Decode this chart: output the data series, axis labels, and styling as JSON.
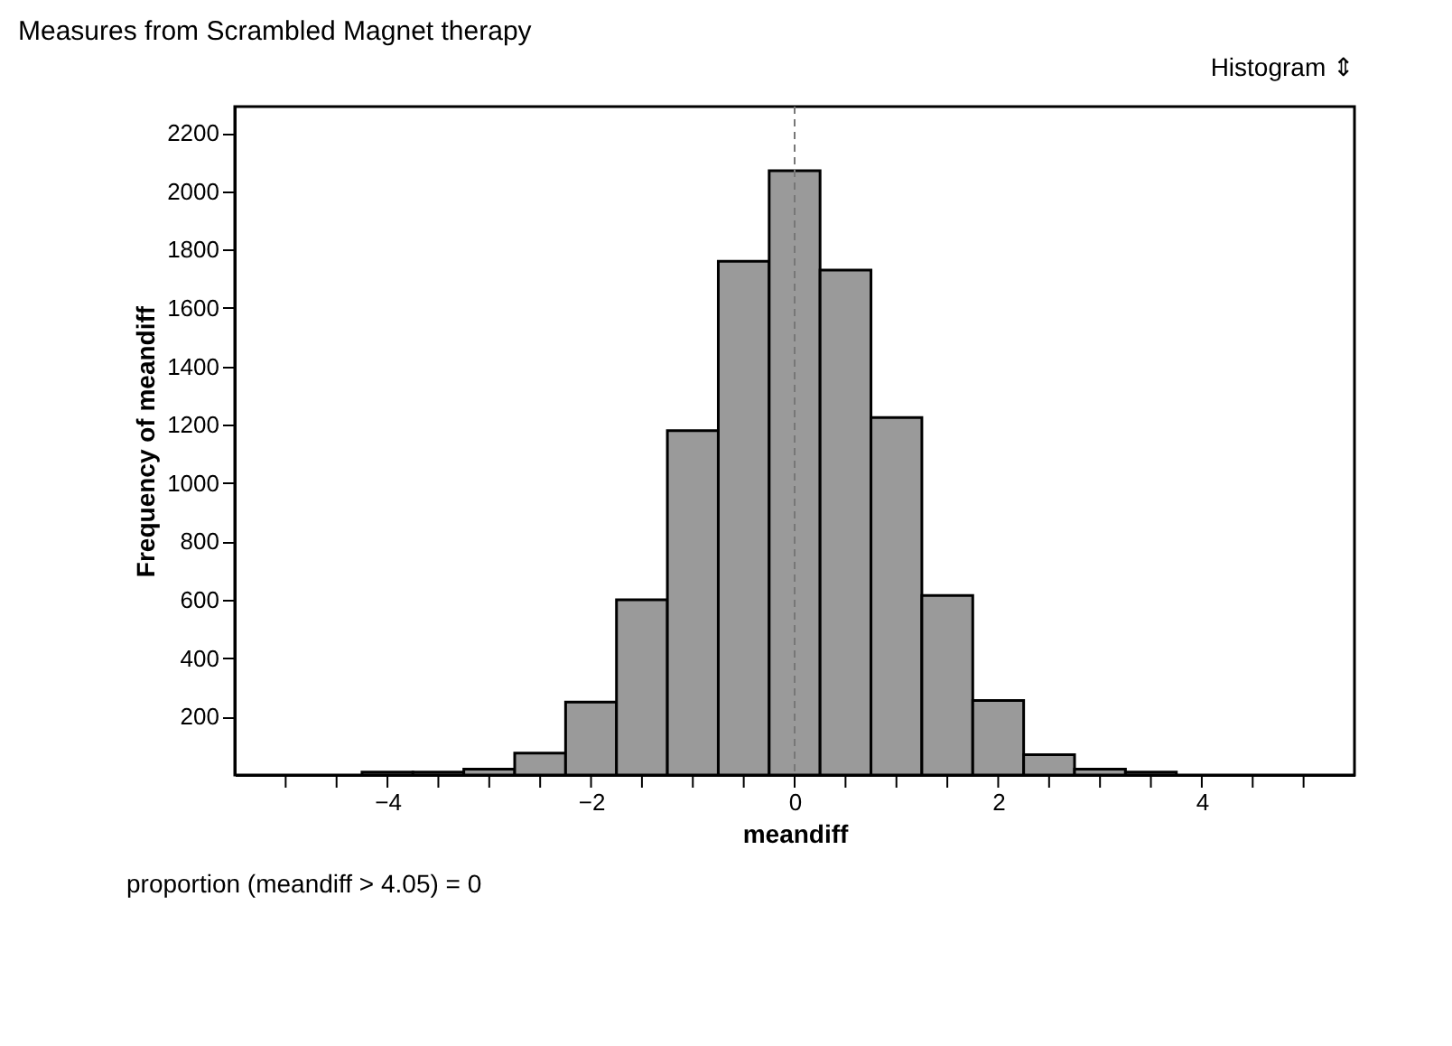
{
  "chart_data": {
    "type": "histogram",
    "title": "Measures from Scrambled Magnet therapy",
    "xlabel": "meandiff",
    "ylabel": "Frequency of meandiff",
    "bins": [
      -4.25,
      -3.75,
      -3.25,
      -2.75,
      -2.25,
      -1.75,
      -1.25,
      -0.75,
      -0.25,
      0.25,
      0.75,
      1.25,
      1.75,
      2.25,
      2.75,
      3.25,
      3.75
    ],
    "values": [
      10,
      10,
      20,
      75,
      250,
      600,
      1180,
      1760,
      2070,
      1730,
      1225,
      615,
      255,
      70,
      20,
      10
    ],
    "color": "#9a9a9a",
    "xlim": [
      -5.5,
      5.5
    ],
    "ylim": [
      0,
      2290
    ],
    "xticks": [
      {
        "value": -5,
        "label": null
      },
      {
        "value": -4.5,
        "label": null
      },
      -4,
      {
        "value": -3.5,
        "label": null
      },
      {
        "value": -3,
        "label": null
      },
      {
        "value": -2.5,
        "label": null
      },
      -2,
      {
        "value": -1.5,
        "label": null
      },
      {
        "value": -1,
        "label": null
      },
      {
        "value": -0.5,
        "label": null
      },
      0,
      {
        "value": 0.5,
        "label": null
      },
      {
        "value": 1,
        "label": null
      },
      {
        "value": 1.5,
        "label": null
      },
      2,
      {
        "value": 2.5,
        "label": null
      },
      {
        "value": 3,
        "label": null
      },
      {
        "value": 3.5,
        "label": null
      },
      4,
      {
        "value": 4.5,
        "label": null
      },
      {
        "value": 5,
        "label": null
      }
    ],
    "yticks": [
      200,
      400,
      600,
      800,
      1000,
      1200,
      1400,
      1600,
      1800,
      2000,
      2200
    ],
    "ref_lines": [
      {
        "axis": "x",
        "value": 0,
        "label": null,
        "color": "#777777",
        "line_style": "dashed"
      }
    ],
    "grid": false,
    "annotations": [
      "Histogram ⇕",
      "proportion (meandiff > 4.05) = 0"
    ]
  }
}
